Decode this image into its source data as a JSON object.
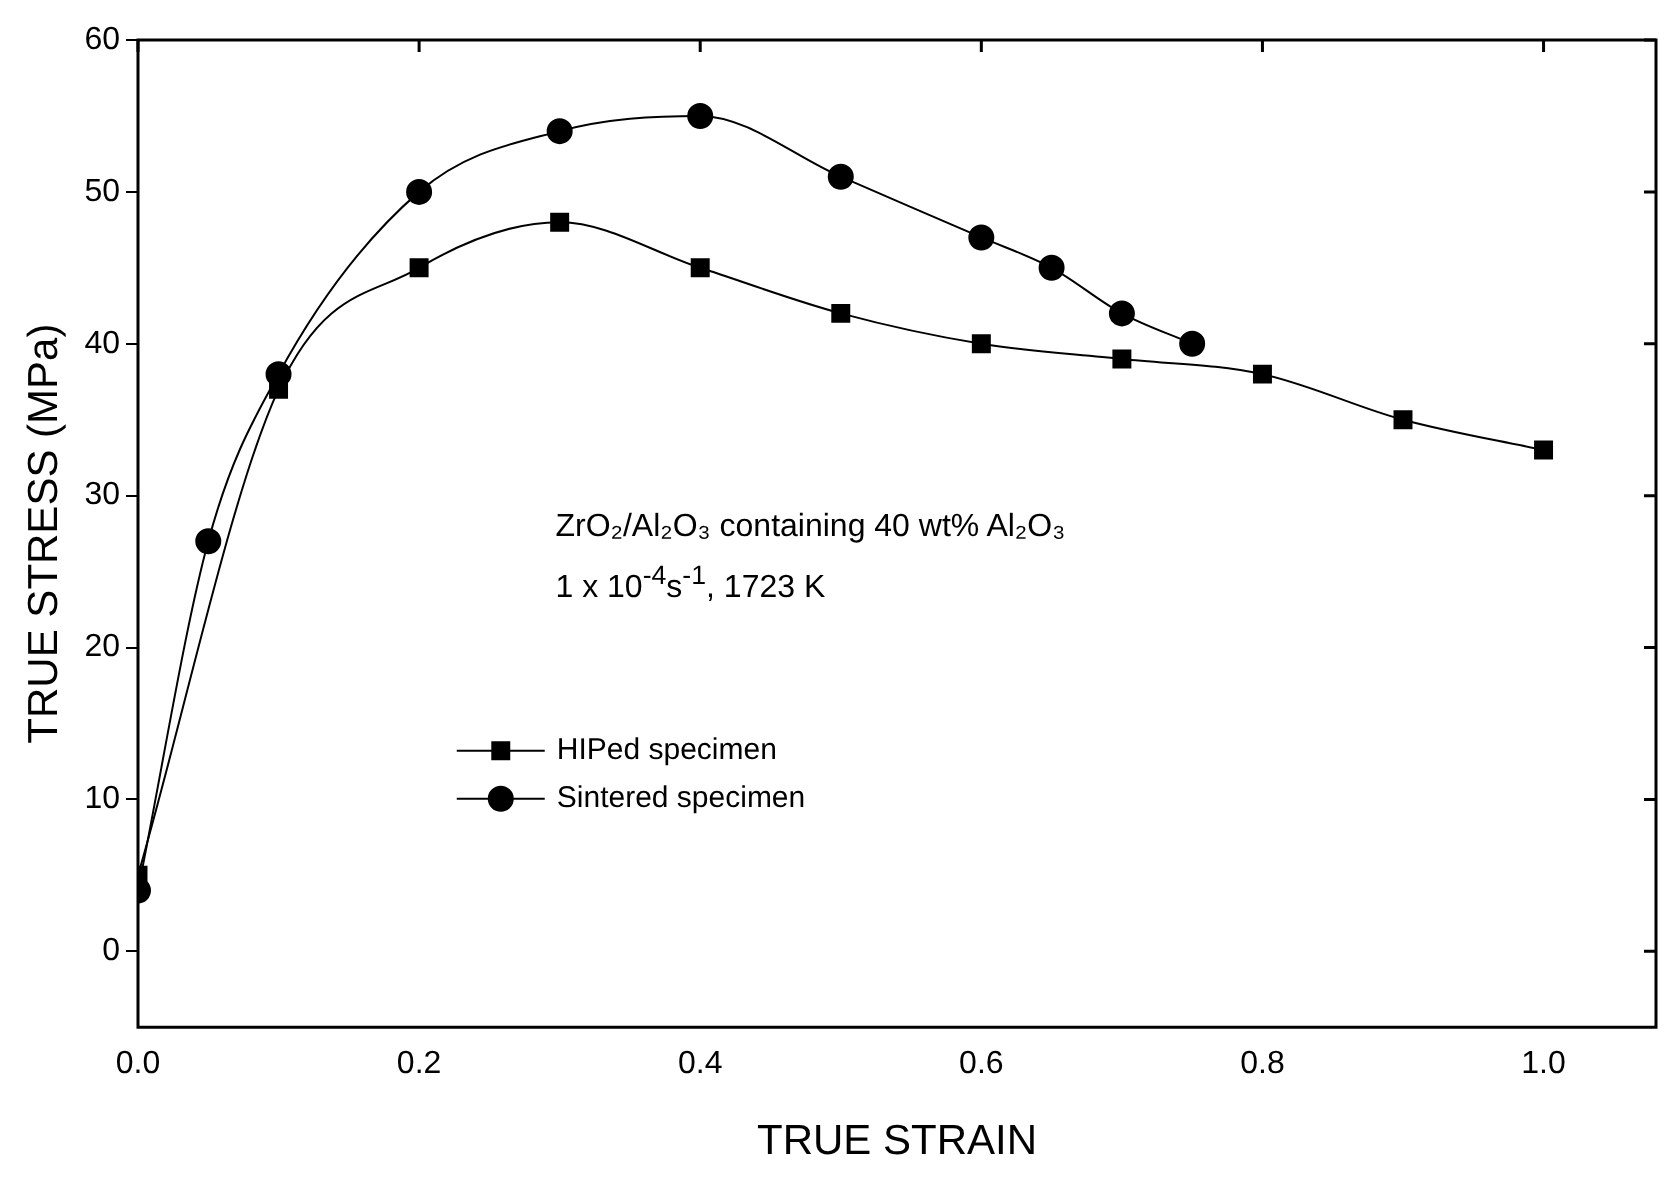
{
  "chart_data": {
    "type": "line",
    "xlabel": "TRUE STRAIN",
    "ylabel": "TRUE STRESS (MPa)",
    "xlim": [
      0,
      1.08
    ],
    "xticks": [
      {
        "value": 0,
        "label": "0.0"
      },
      {
        "value": 0.2,
        "label": "0.2"
      },
      {
        "value": 0.4,
        "label": "0.4"
      },
      {
        "value": 0.6,
        "label": "0.6"
      },
      {
        "value": 0.8,
        "label": "0.8"
      },
      {
        "value": 1,
        "label": "1.0"
      }
    ],
    "ylim": [
      -5,
      60
    ],
    "yticks": [
      0,
      10,
      20,
      30,
      40,
      50,
      60
    ],
    "series": [
      {
        "name": "HIPed specimen",
        "color": "#000000",
        "marker": "square",
        "x": [
          0,
          0.1,
          0.2,
          0.3,
          0.4,
          0.5,
          0.6,
          0.7,
          0.8,
          0.9,
          1.0
        ],
        "values": [
          5,
          37,
          45,
          48,
          45,
          42,
          40,
          39,
          38,
          35,
          33
        ]
      },
      {
        "name": "Sintered specimen",
        "color": "#000000",
        "marker": "circle",
        "x": [
          0,
          0.05,
          0.1,
          0.2,
          0.3,
          0.4,
          0.5,
          0.6,
          0.65,
          0.7,
          0.75
        ],
        "values": [
          4,
          27,
          38,
          50,
          54,
          55,
          51,
          47,
          45,
          42,
          40
        ]
      }
    ],
    "annotations": [
      "ZrO₂/Al₂O₃ containing 40 wt% Al₂O₃",
      "1 x 10$^{-4}$s$^{-1}$, 1723 K"
    ],
    "legend": "bottom left",
    "grid": false
  }
}
